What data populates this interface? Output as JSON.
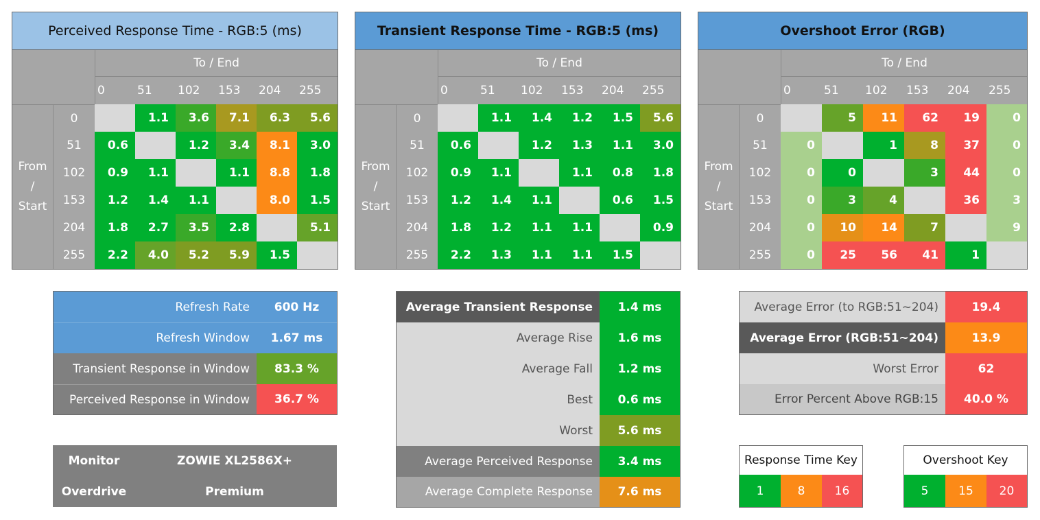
{
  "colors": {
    "green": "#00b02f",
    "green2": "#3aa929",
    "olive_green": "#66a329",
    "olive": "#7f9c22",
    "olive_brown": "#a89920",
    "orange_dark": "#e59018",
    "orange": "#fc8a17",
    "red": "#f55252",
    "light_green": "#a9d08e",
    "light_gray": "#d9d9d9",
    "gray": "#a6a6a6",
    "dark_gray": "#595959",
    "mid_gray": "#808080",
    "blue_light": "#9bc2e6",
    "blue": "#5b9bd5"
  },
  "axis": {
    "to_end": "To / End",
    "from_start": [
      "From",
      "/",
      "Start"
    ],
    "levels": [
      "0",
      "51",
      "102",
      "153",
      "204",
      "255"
    ]
  },
  "chart_data": [
    {
      "type": "heatmap",
      "title": "Perceived Response Time - RGB:5 (ms)",
      "xlabel": "To / End",
      "ylabel": "From / Start",
      "x": [
        "0",
        "51",
        "102",
        "153",
        "204",
        "255"
      ],
      "y": [
        "0",
        "51",
        "102",
        "153",
        "204",
        "255"
      ],
      "values": [
        [
          null,
          1.1,
          3.6,
          7.1,
          6.3,
          5.6
        ],
        [
          0.6,
          null,
          1.2,
          3.4,
          8.1,
          3.0
        ],
        [
          0.9,
          1.1,
          null,
          1.1,
          8.8,
          1.8
        ],
        [
          1.2,
          1.4,
          1.1,
          null,
          8.0,
          1.5
        ],
        [
          1.8,
          2.7,
          3.5,
          2.8,
          null,
          5.1
        ],
        [
          2.2,
          4.0,
          5.2,
          5.9,
          1.5,
          null
        ]
      ],
      "labels": [
        [
          "",
          "1.1",
          "3.6",
          "7.1",
          "6.3",
          "5.6"
        ],
        [
          "0.6",
          "",
          "1.2",
          "3.4",
          "8.1",
          "3.0"
        ],
        [
          "0.9",
          "1.1",
          "",
          "1.1",
          "8.8",
          "1.8"
        ],
        [
          "1.2",
          "1.4",
          "1.1",
          "",
          "8.0",
          "1.5"
        ],
        [
          "1.8",
          "2.7",
          "3.5",
          "2.8",
          "",
          "5.1"
        ],
        [
          "2.2",
          "4.0",
          "5.2",
          "5.9",
          "1.5",
          ""
        ]
      ],
      "cell_colors": [
        [
          "light_gray",
          "green",
          "green2",
          "olive_brown",
          "olive",
          "olive"
        ],
        [
          "green",
          "light_gray",
          "green",
          "green2",
          "orange",
          "green"
        ],
        [
          "green",
          "green",
          "light_gray",
          "green",
          "orange",
          "green"
        ],
        [
          "green",
          "green",
          "green",
          "light_gray",
          "orange",
          "green"
        ],
        [
          "green",
          "green",
          "green2",
          "green",
          "light_gray",
          "olive_green"
        ],
        [
          "green",
          "olive_green",
          "olive",
          "olive",
          "green",
          "light_gray"
        ]
      ]
    },
    {
      "type": "heatmap",
      "title": "Transient Response Time - RGB:5 (ms)",
      "xlabel": "To / End",
      "ylabel": "From / Start",
      "x": [
        "0",
        "51",
        "102",
        "153",
        "204",
        "255"
      ],
      "y": [
        "0",
        "51",
        "102",
        "153",
        "204",
        "255"
      ],
      "values": [
        [
          null,
          1.1,
          1.4,
          1.2,
          1.5,
          5.6
        ],
        [
          0.6,
          null,
          1.2,
          1.3,
          1.1,
          3.0
        ],
        [
          0.9,
          1.1,
          null,
          1.1,
          0.8,
          1.8
        ],
        [
          1.2,
          1.4,
          1.1,
          null,
          0.6,
          1.5
        ],
        [
          1.8,
          1.2,
          1.1,
          1.1,
          null,
          0.9
        ],
        [
          2.2,
          1.3,
          1.1,
          1.1,
          1.5,
          null
        ]
      ],
      "labels": [
        [
          "",
          "1.1",
          "1.4",
          "1.2",
          "1.5",
          "5.6"
        ],
        [
          "0.6",
          "",
          "1.2",
          "1.3",
          "1.1",
          "3.0"
        ],
        [
          "0.9",
          "1.1",
          "",
          "1.1",
          "0.8",
          "1.8"
        ],
        [
          "1.2",
          "1.4",
          "1.1",
          "",
          "0.6",
          "1.5"
        ],
        [
          "1.8",
          "1.2",
          "1.1",
          "1.1",
          "",
          "0.9"
        ],
        [
          "2.2",
          "1.3",
          "1.1",
          "1.1",
          "1.5",
          ""
        ]
      ],
      "cell_colors": [
        [
          "light_gray",
          "green",
          "green",
          "green",
          "green",
          "olive"
        ],
        [
          "green",
          "light_gray",
          "green",
          "green",
          "green",
          "green"
        ],
        [
          "green",
          "green",
          "light_gray",
          "green",
          "green",
          "green"
        ],
        [
          "green",
          "green",
          "green",
          "light_gray",
          "green",
          "green"
        ],
        [
          "green",
          "green",
          "green",
          "green",
          "light_gray",
          "green"
        ],
        [
          "green",
          "green",
          "green",
          "green",
          "green",
          "light_gray"
        ]
      ]
    },
    {
      "type": "heatmap",
      "title": "Overshoot Error (RGB)",
      "xlabel": "To / End",
      "ylabel": "From / Start",
      "x": [
        "0",
        "51",
        "102",
        "153",
        "204",
        "255"
      ],
      "y": [
        "0",
        "51",
        "102",
        "153",
        "204",
        "255"
      ],
      "values": [
        [
          null,
          5,
          11,
          62,
          19,
          0
        ],
        [
          0,
          null,
          1,
          8,
          37,
          0
        ],
        [
          0,
          0,
          null,
          3,
          44,
          0
        ],
        [
          0,
          3,
          4,
          null,
          36,
          3
        ],
        [
          0,
          10,
          14,
          7,
          null,
          9
        ],
        [
          0,
          25,
          56,
          41,
          1,
          null
        ]
      ],
      "labels": [
        [
          "",
          "5",
          "11",
          "62",
          "19",
          "0"
        ],
        [
          "0",
          "",
          "1",
          "8",
          "37",
          "0"
        ],
        [
          "0",
          "0",
          "",
          "3",
          "44",
          "0"
        ],
        [
          "0",
          "3",
          "4",
          "",
          "36",
          "3"
        ],
        [
          "0",
          "10",
          "14",
          "7",
          "",
          "9"
        ],
        [
          "0",
          "25",
          "56",
          "41",
          "1",
          ""
        ]
      ],
      "cell_colors": [
        [
          "light_gray",
          "olive_green",
          "orange",
          "red",
          "red",
          "light_green"
        ],
        [
          "light_green",
          "light_gray",
          "green",
          "olive_brown",
          "red",
          "light_green"
        ],
        [
          "light_green",
          "green",
          "light_gray",
          "green2",
          "red",
          "light_green"
        ],
        [
          "light_green",
          "green2",
          "olive_green",
          "light_gray",
          "red",
          "light_green"
        ],
        [
          "light_green",
          "orange_dark",
          "orange",
          "olive",
          "light_gray",
          "light_green"
        ],
        [
          "light_green",
          "red",
          "red",
          "red",
          "green",
          "light_gray"
        ]
      ]
    }
  ],
  "refresh_panel": {
    "rows": [
      {
        "label": "Refresh Rate",
        "value": "600 Hz"
      },
      {
        "label": "Refresh Window",
        "value": "1.67 ms"
      },
      {
        "label": "Transient Response in Window",
        "value": "83.3 %"
      },
      {
        "label": "Perceived Response in Window",
        "value": "36.7 %"
      }
    ]
  },
  "monitor_panel": {
    "monitor_label": "Monitor",
    "monitor_value": "ZOWIE XL2586X+",
    "overdrive_label": "Overdrive",
    "overdrive_value": "Premium"
  },
  "transient_panel": {
    "rows": [
      {
        "label": "Average Transient Response",
        "value": "1.4 ms"
      },
      {
        "label": "Average Rise",
        "value": "1.6 ms"
      },
      {
        "label": "Average Fall",
        "value": "1.2 ms"
      },
      {
        "label": "Best",
        "value": "0.6 ms"
      },
      {
        "label": "Worst",
        "value": "5.6 ms"
      },
      {
        "label": "Average Perceived Response",
        "value": "3.4 ms"
      },
      {
        "label": "Average Complete Response",
        "value": "7.6 ms"
      }
    ]
  },
  "error_panel": {
    "rows": [
      {
        "label": "Average Error (to RGB:51~204)",
        "value": "19.4"
      },
      {
        "label": "Average Error (RGB:51~204)",
        "value": "13.9"
      },
      {
        "label": "Worst Error",
        "value": "62"
      },
      {
        "label": "Error Percent Above RGB:15",
        "value": "40.0 %"
      }
    ]
  },
  "response_key": {
    "title": "Response Time Key",
    "values": [
      "1",
      "8",
      "16"
    ]
  },
  "overshoot_key": {
    "title": "Overshoot Key",
    "values": [
      "5",
      "15",
      "20"
    ]
  }
}
